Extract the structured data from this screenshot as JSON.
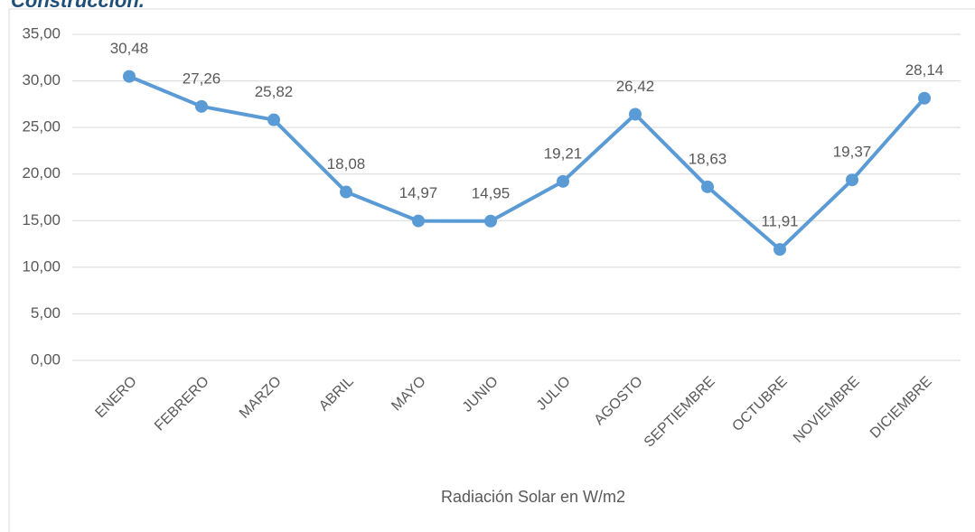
{
  "chart_data": {
    "type": "line",
    "title": "Construcción.",
    "x_axis_label": "Radiación Solar en W/m2",
    "categories": [
      "ENERO",
      "FEBRERO",
      "MARZO",
      "ABRIL",
      "MAYO",
      "JUNIO",
      "JULIO",
      "AGOSTO",
      "SEPTIEMBRE",
      "OCTUBRE",
      "NOVIEMBRE",
      "DICIEMBRE"
    ],
    "values": [
      30.48,
      27.26,
      25.82,
      18.08,
      14.97,
      14.95,
      19.21,
      26.42,
      18.63,
      11.91,
      19.37,
      28.14
    ],
    "value_labels": [
      "30,48",
      "27,26",
      "25,82",
      "18,08",
      "14,97",
      "14,95",
      "19,21",
      "26,42",
      "18,63",
      "11,91",
      "19,37",
      "28,14"
    ],
    "color": "#5b9bd5",
    "ylim": [
      0,
      35
    ],
    "yticks": [
      {
        "value": 0,
        "label": "0,00"
      },
      {
        "value": 5,
        "label": "5,00"
      },
      {
        "value": 10,
        "label": "10,00"
      },
      {
        "value": 15,
        "label": "15,00"
      },
      {
        "value": 20,
        "label": "20,00"
      },
      {
        "value": 25,
        "label": "25,00"
      },
      {
        "value": 30,
        "label": "30,00"
      },
      {
        "value": 35,
        "label": "35,00"
      }
    ],
    "grid": true
  }
}
